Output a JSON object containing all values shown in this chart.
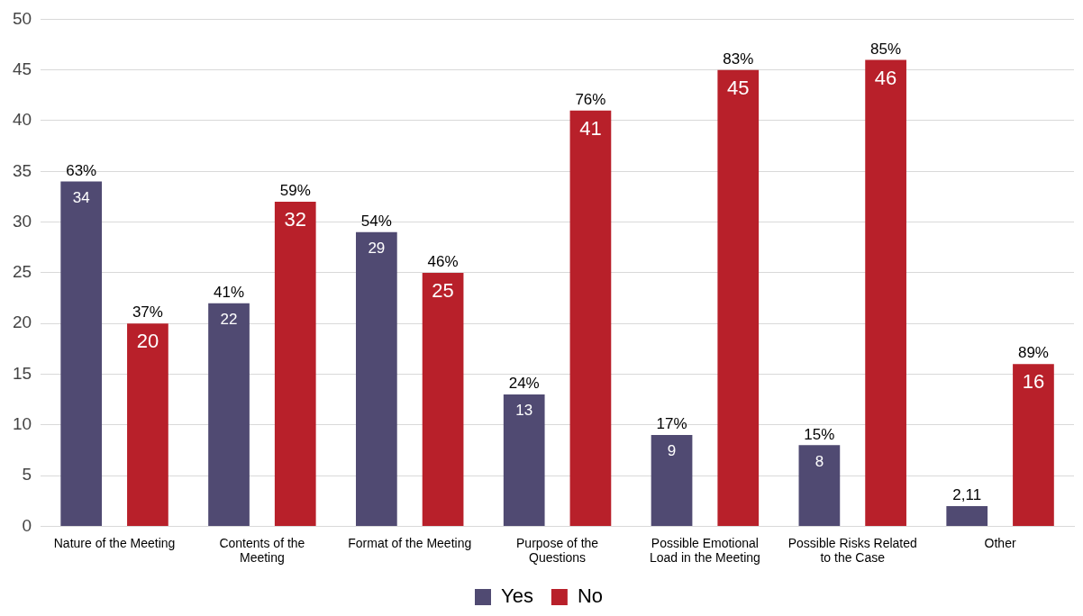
{
  "chart_data": {
    "type": "bar",
    "categories": [
      "Nature of the Meeting",
      "Contents of the Meeting",
      "Format of the Meeting",
      "Purpose of the Questions",
      "Possible Emotional Load in the Meeting",
      "Possible Risks Related to the Case",
      "Other"
    ],
    "series": [
      {
        "name": "Yes",
        "color": "#504a72",
        "values": [
          34,
          22,
          29,
          13,
          9,
          8,
          2
        ],
        "value_labels": [
          "34",
          "22",
          "29",
          "13",
          "9",
          "8",
          null
        ]
      },
      {
        "name": "No",
        "color": "#b8202a",
        "values": [
          20,
          32,
          25,
          41,
          45,
          46,
          16
        ],
        "value_labels": [
          "20",
          "32",
          "25",
          "41",
          "45",
          "46",
          "16"
        ]
      }
    ],
    "annotations": [
      "63%",
      "37%",
      "41%",
      "59%",
      "54%",
      "46%",
      "24%",
      "76%",
      "17%",
      "83%",
      "15%",
      "85%",
      "2,11",
      "89%"
    ],
    "ylim": [
      0,
      50
    ],
    "yticks": [
      0,
      5,
      10,
      15,
      20,
      25,
      30,
      35,
      40,
      45,
      50
    ],
    "grid": "y",
    "legend": "bottom"
  }
}
